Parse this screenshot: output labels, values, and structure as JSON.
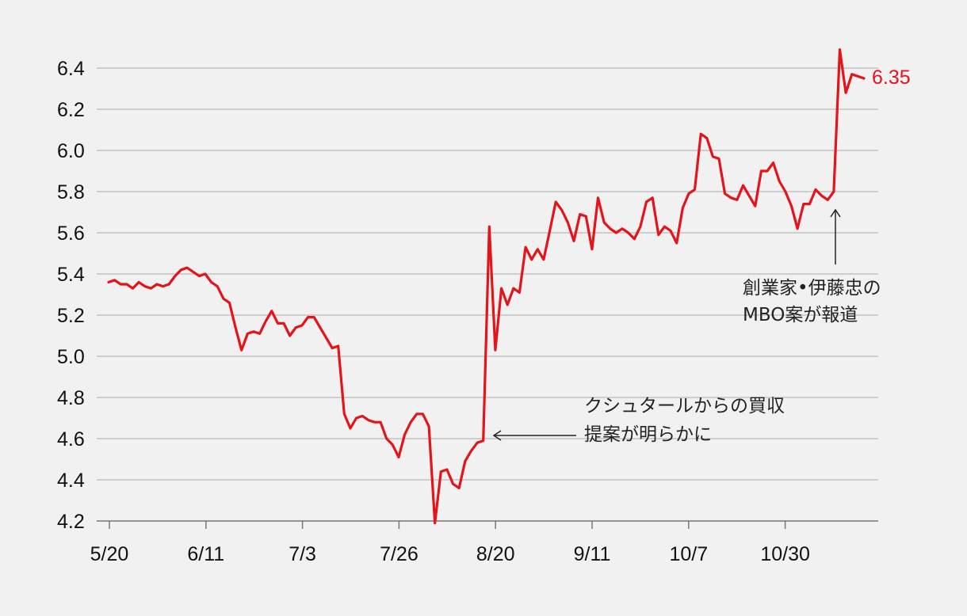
{
  "chart_data": {
    "type": "line",
    "title": "",
    "xlabel": "",
    "ylabel": "",
    "ylim": [
      4.2,
      6.5
    ],
    "yticks": [
      "4.2",
      "4.4",
      "4.6",
      "4.8",
      "5.0",
      "5.2",
      "5.4",
      "5.6",
      "5.8",
      "6.0",
      "6.2",
      "6.4"
    ],
    "xtick_labels": [
      "5/20",
      "6/11",
      "7/3",
      "7/26",
      "8/20",
      "9/11",
      "10/7",
      "10/30"
    ],
    "grid": "horizontal",
    "line_color": "#e4141b",
    "end_label": "6.35",
    "series": [
      {
        "values": [
          5.36,
          5.37,
          5.35,
          5.35,
          5.33,
          5.36,
          5.34,
          5.33,
          5.35,
          5.34,
          5.35,
          5.39,
          5.42,
          5.43,
          5.41,
          5.39,
          5.4,
          5.36,
          5.34,
          5.28,
          5.26,
          5.14,
          5.03,
          5.11,
          5.12,
          5.11,
          5.17,
          5.22,
          5.16,
          5.16,
          5.1,
          5.14,
          5.15,
          5.19,
          5.19,
          5.14,
          5.09,
          5.04,
          5.05,
          4.72,
          4.65,
          4.7,
          4.71,
          4.69,
          4.68,
          4.68,
          4.6,
          4.57,
          4.51,
          4.62,
          4.68,
          4.72,
          4.72,
          4.66,
          4.19,
          4.44,
          4.45,
          4.38,
          4.36,
          4.49,
          4.54,
          4.58,
          4.59,
          5.63,
          5.03,
          5.33,
          5.25,
          5.33,
          5.31,
          5.53,
          5.47,
          5.52,
          5.47,
          5.61,
          5.75,
          5.71,
          5.65,
          5.56,
          5.69,
          5.68,
          5.52,
          5.77,
          5.65,
          5.62,
          5.6,
          5.62,
          5.6,
          5.57,
          5.63,
          5.75,
          5.77,
          5.59,
          5.63,
          5.61,
          5.55,
          5.72,
          5.79,
          5.81,
          6.08,
          6.06,
          5.97,
          5.96,
          5.79,
          5.77,
          5.76,
          5.83,
          5.78,
          5.73,
          5.9,
          5.9,
          5.94,
          5.85,
          5.8,
          5.73,
          5.62,
          5.74,
          5.74,
          5.81,
          5.78,
          5.76,
          5.8,
          6.49,
          6.28,
          6.37,
          6.36,
          6.35
        ]
      }
    ],
    "annotations": [
      {
        "lines": [
          "クシュタールからの買収",
          "提案が明らかに"
        ]
      },
      {
        "lines": [
          "創業家•伊藤忠の",
          "MBO案が報道"
        ]
      }
    ]
  }
}
